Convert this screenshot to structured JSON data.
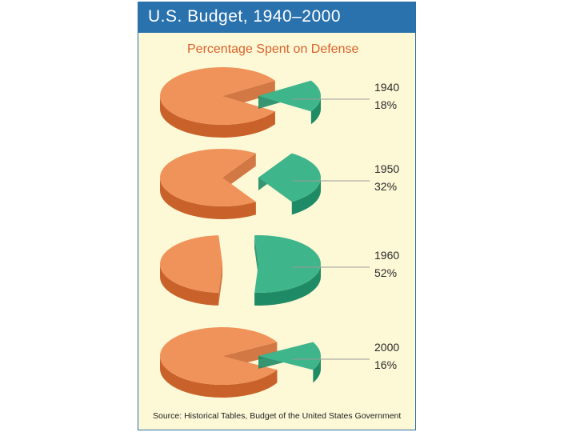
{
  "chart_data": {
    "type": "pie",
    "title": "U.S. Budget, 1940–2000",
    "subtitle": "Percentage Spent on Defense",
    "source": "Source: Historical Tables, Budget of the United States Government",
    "slice_label": "Defense",
    "pies": [
      {
        "year": "1940",
        "label": "18%",
        "value": 18
      },
      {
        "year": "1950",
        "label": "32%",
        "value": 32
      },
      {
        "year": "1960",
        "label": "52%",
        "value": 52
      },
      {
        "year": "2000",
        "label": "16%",
        "value": 16
      }
    ],
    "colors": {
      "other_top": "#f0935a",
      "other_side": "#c9622a",
      "defense_top": "#3fb58c",
      "defense_side": "#1f8b66",
      "leader": "#9a9a9a"
    }
  }
}
